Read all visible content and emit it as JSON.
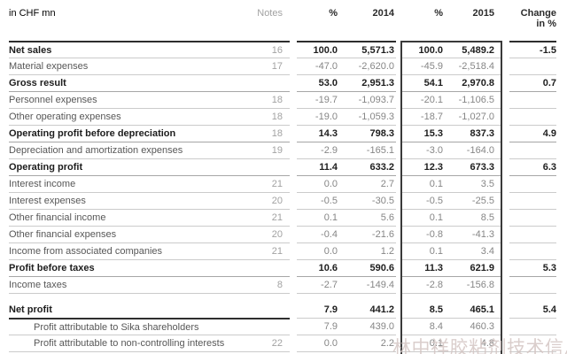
{
  "header": {
    "row_label": "in CHF mn",
    "notes": "Notes",
    "pct_2014": "%",
    "year_2014": "2014",
    "pct_2015": "%",
    "year_2015": "2015",
    "change": "Change in %"
  },
  "watermark": "林中祥胶粘剂技术信息网",
  "colors": {
    "dark_rule": "#2e2e2e",
    "light_rule": "#cbcbcb",
    "box_border": "#3a3a3a",
    "bold_text": "#1d1d1d",
    "normal_text": "#575757",
    "number_text": "#868686",
    "watermark": "#d4c6c4"
  },
  "table": {
    "rows": [
      {
        "label": "Net sales",
        "notes": "16",
        "p14": "100.0",
        "v14": "5,571.3",
        "p15": "100.0",
        "v15": "5,489.2",
        "chg": "-1.5",
        "bold": true,
        "rule": "dark"
      },
      {
        "label": "Material expenses",
        "notes": "17",
        "p14": "-47.0",
        "v14": "-2,620.0",
        "p15": "-45.9",
        "v15": "-2,518.4",
        "chg": "",
        "rule": "light"
      },
      {
        "label": "Gross result",
        "notes": "",
        "p14": "53.0",
        "v14": "2,951.3",
        "p15": "54.1",
        "v15": "2,970.8",
        "chg": "0.7",
        "bold": true,
        "rule": "light"
      },
      {
        "label": "Personnel expenses",
        "notes": "18",
        "p14": "-19.7",
        "v14": "-1,093.7",
        "p15": "-20.1",
        "v15": "-1,106.5",
        "chg": "",
        "rule": "medium"
      },
      {
        "label": "Other operating expenses",
        "notes": "18",
        "p14": "-19.0",
        "v14": "-1,059.3",
        "p15": "-18.7",
        "v15": "-1,027.0",
        "chg": "",
        "rule": "light"
      },
      {
        "label": "Operating profit before depreciation",
        "notes": "18",
        "p14": "14.3",
        "v14": "798.3",
        "p15": "15.3",
        "v15": "837.3",
        "chg": "4.9",
        "bold": true,
        "rule": "light"
      },
      {
        "label": "Depreciation and amortization expenses",
        "notes": "19",
        "p14": "-2.9",
        "v14": "-165.1",
        "p15": "-3.0",
        "v15": "-164.0",
        "chg": "",
        "rule": "medium"
      },
      {
        "label": "Operating profit",
        "notes": "",
        "p14": "11.4",
        "v14": "633.2",
        "p15": "12.3",
        "v15": "673.3",
        "chg": "6.3",
        "bold": true,
        "rule": "light"
      },
      {
        "label": "Interest income",
        "notes": "21",
        "p14": "0.0",
        "v14": "2.7",
        "p15": "0.1",
        "v15": "3.5",
        "chg": "",
        "rule": "medium"
      },
      {
        "label": "Interest expenses",
        "notes": "20",
        "p14": "-0.5",
        "v14": "-30.5",
        "p15": "-0.5",
        "v15": "-25.5",
        "chg": "",
        "rule": "light"
      },
      {
        "label": "Other financial income",
        "notes": "21",
        "p14": "0.1",
        "v14": "5.6",
        "p15": "0.1",
        "v15": "8.5",
        "chg": "",
        "rule": "light"
      },
      {
        "label": "Other financial expenses",
        "notes": "20",
        "p14": "-0.4",
        "v14": "-21.6",
        "p15": "-0.8",
        "v15": "-41.3",
        "chg": "",
        "rule": "light"
      },
      {
        "label": "Income from associated companies",
        "notes": "21",
        "p14": "0.0",
        "v14": "1.2",
        "p15": "0.1",
        "v15": "3.4",
        "chg": "",
        "rule": "light"
      },
      {
        "label": "Profit before taxes",
        "notes": "",
        "p14": "10.6",
        "v14": "590.6",
        "p15": "11.3",
        "v15": "621.9",
        "chg": "5.3",
        "bold": true,
        "rule": "light"
      },
      {
        "label": "Income taxes",
        "notes": "8",
        "p14": "-2.7",
        "v14": "-149.4",
        "p15": "-2.8",
        "v15": "-156.8",
        "chg": "",
        "rule": "medium"
      },
      {
        "spacer": true,
        "height": 9,
        "rule": "light"
      },
      {
        "label": "Net profit",
        "notes": "",
        "p14": "7.9",
        "v14": "441.2",
        "p15": "8.5",
        "v15": "465.1",
        "chg": "5.4",
        "bold": true,
        "rule": "none"
      },
      {
        "label": "Profit attributable to Sika shareholders",
        "notes": "",
        "p14": "7.9",
        "v14": "439.0",
        "p15": "8.4",
        "v15": "460.3",
        "chg": "",
        "indent": true,
        "rule": "darklabel"
      },
      {
        "label": "Profit attributable to non-controlling interests",
        "notes": "22",
        "p14": "0.0",
        "v14": "2.2",
        "p15": "0.1",
        "v15": "4.8",
        "chg": "",
        "indent": true,
        "rule": "light"
      },
      {
        "spacer": true,
        "height": 3,
        "rule": "light"
      }
    ]
  }
}
